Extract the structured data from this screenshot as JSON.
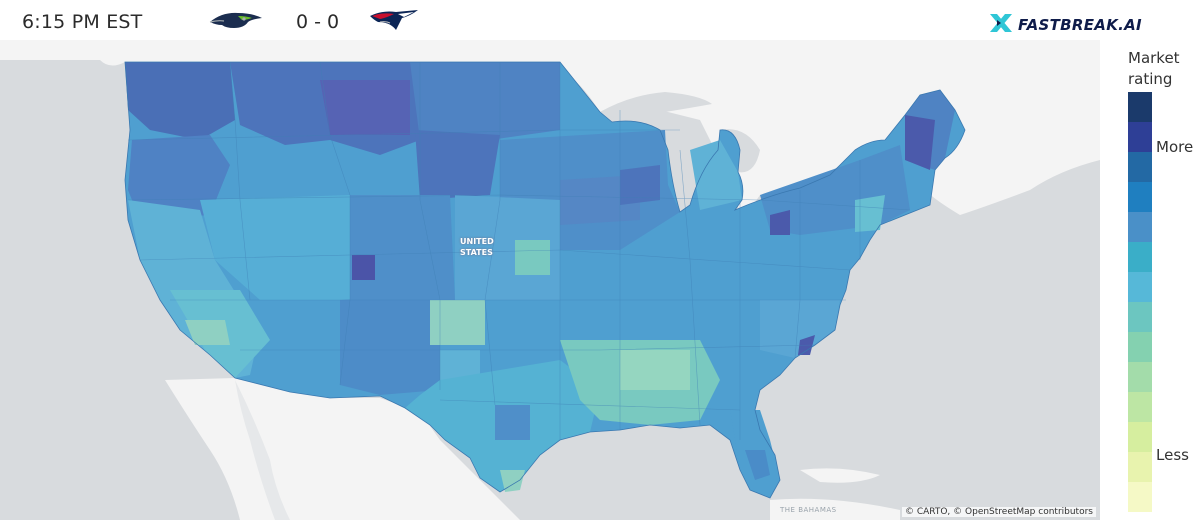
{
  "header": {
    "time": "6:15 PM EST",
    "score": "0 - 0",
    "away_team_icon": "seahawks-logo",
    "home_team_icon": "patriots-logo",
    "brand": "FASTBREAK.AI",
    "brand_icon": "fastbreak-x-icon"
  },
  "map": {
    "country_label_line1": "UNITED",
    "country_label_line2": "STATES",
    "place_label": "THE BAHAMAS",
    "attribution": "© CARTO, © OpenStreetMap contributors",
    "colors": {
      "land_outside": "#f4f4f4",
      "water": "#d8dbde",
      "base_region": "#4f9fd0"
    },
    "regions_described": "US counties/DMAs colored by market rating"
  },
  "legend": {
    "title_line1": "Market",
    "title_line2": "rating",
    "more_label": "More",
    "less_label": "Less",
    "scale_colors": [
      "#1b3a6b",
      "#2e3f96",
      "#2369a4",
      "#1f7fc0",
      "#4a90c8",
      "#3aaec8",
      "#56b8d8",
      "#6cc6c0",
      "#84d1b0",
      "#a3dcaa",
      "#bde6a4",
      "#d6ee9f",
      "#e8f3ae",
      "#f5f9c6"
    ]
  }
}
